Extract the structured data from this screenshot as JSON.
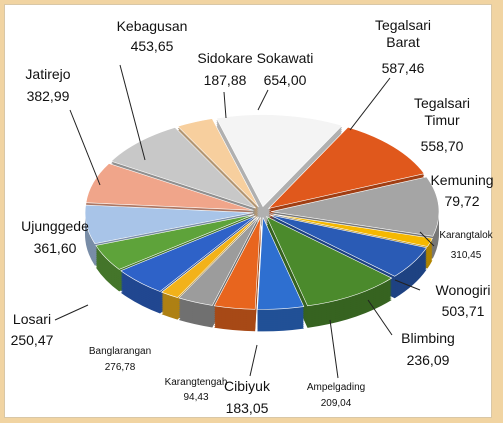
{
  "chart_data": {
    "type": "pie",
    "categories": [
      "Sokawati",
      "Tegalsari Barat",
      "Tegalsari Timur",
      "Kemuning",
      "Karangtalok",
      "Wonogiri",
      "Blimbing",
      "Ampelgading",
      "Cibiyuk",
      "Karangtengah",
      "Banglarangan",
      "Losari",
      "Ujunggede",
      "Jatirejo",
      "Kebagusan",
      "Sidokare"
    ],
    "values": [
      654.0,
      587.46,
      558.7,
      79.72,
      310.45,
      503.71,
      236.09,
      209.04,
      183.05,
      94.43,
      276.78,
      250.47,
      361.6,
      382.99,
      453.65,
      187.88
    ],
    "value_labels": [
      "654,00",
      "587,46",
      "558,70",
      "79,72",
      "310,45",
      "503,71",
      "236,09",
      "209,04",
      "183,05",
      "94,43",
      "276,78",
      "250,47",
      "361,60",
      "382,99",
      "453,65",
      "187,88"
    ],
    "colors": [
      "#f4f4f4",
      "#e0581c",
      "#a5a5a5",
      "#f5b800",
      "#2a5bb5",
      "#4b8a2c",
      "#2e6fd0",
      "#e8651e",
      "#9c9c9c",
      "#f2b21a",
      "#2e62c8",
      "#5ea33a",
      "#a8c4e8",
      "#f0a58a",
      "#c8c8c8",
      "#f7cf9e"
    ]
  }
}
